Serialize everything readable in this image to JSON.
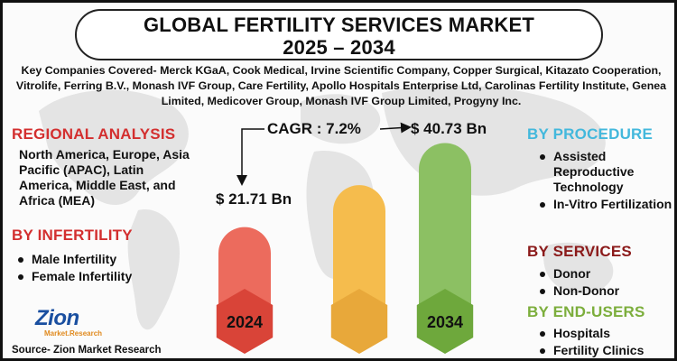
{
  "title": {
    "line1": "GLOBAL FERTILITY SERVICES MARKET",
    "line2": "2025 – 2034"
  },
  "companies": "Key Companies Covered- Merck KGaA, Cook Medical, Irvine Scientific Company, Copper Surgical, Kitazato Cooperation, Vitrolife, Ferring B.V., Monash IVF Group, Care Fertility, Apollo Hospitals Enterprise Ltd, Carolinas Fertility Institute, Genea Limited, Medicover Group, Monash IVF Group Limited, Progyny Inc.",
  "regional": {
    "title": "REGIONAL ANALYSIS",
    "text": "North America, Europe, Asia Pacific (APAC), Latin America, Middle East, and Africa (MEA)"
  },
  "infertility": {
    "title": "BY INFERTILITY",
    "items": [
      "Male Infertility",
      "Female Infertility"
    ]
  },
  "procedure": {
    "title": "BY PROCEDURE",
    "items": [
      "Assisted Reproductive Technology",
      "In-Vitro Fertilization"
    ]
  },
  "services": {
    "title": "BY SERVICES",
    "items": [
      "Donor",
      "Non-Donor"
    ]
  },
  "end_users": {
    "title": "BY END-USERS",
    "items": [
      "Hospitals",
      "Fertility Clinics"
    ]
  },
  "chart_data": {
    "type": "bar",
    "categories": [
      "2024",
      "",
      "2034"
    ],
    "values": [
      21.71,
      31.2,
      40.73
    ],
    "value_labels": [
      "$ 21.71 Bn",
      "",
      "$ 40.73 Bn"
    ],
    "cagr_label": "CAGR : 7.2%",
    "colors": [
      "#ec6b5d",
      "#f5bc4d",
      "#8cc063"
    ],
    "hex_colors": [
      "#d94438",
      "#e8a83a",
      "#6ea83c"
    ],
    "unit": "USD Billion"
  },
  "logo": {
    "main": "Zion",
    "sub": "Market.Research"
  },
  "source": "Source- Zion Market Research"
}
